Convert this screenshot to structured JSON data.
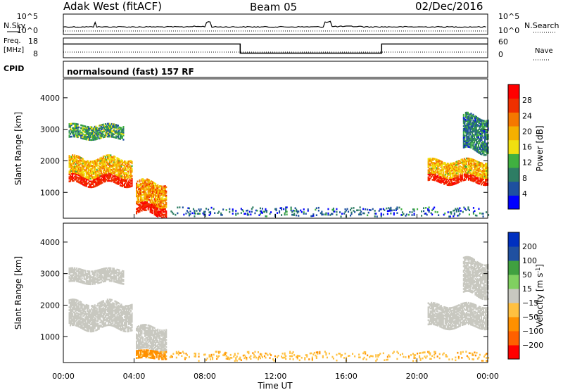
{
  "header": {
    "station": "Adak West (fitACF)",
    "beam": "Beam 05",
    "date": "02/Dec/2016"
  },
  "strips": {
    "nsky_label": "N.Sky",
    "nsearch_label": "N.Search",
    "noise_ticks": [
      "10^5",
      "10^0"
    ],
    "freq_label_1": "Freq.",
    "freq_label_2": "[MHz]",
    "freq_ticks": [
      "18",
      "8"
    ],
    "nave_label": "Nave",
    "nave_ticks": [
      "60",
      "0"
    ],
    "cpid_label": "CPID",
    "cpid_text": "normalsound (fast) 157 RF"
  },
  "colors": {
    "frame": "#000000",
    "power_scale": [
      "#0000ff",
      "#1e50a0",
      "#2e7d64",
      "#40b040",
      "#f0e010",
      "#f5b000",
      "#f57800",
      "#f03000",
      "#ff0000"
    ],
    "velocity_scale": [
      "#ff0000",
      "#ff6000",
      "#ff9000",
      "#ffc040",
      "#c8c8c0",
      "#80d060",
      "#40a040",
      "#2050a0",
      "#0030c0"
    ]
  },
  "chart_data": [
    {
      "type": "line",
      "name": "noise-strip",
      "x_range": [
        "00:00",
        "24:00"
      ],
      "series": [
        {
          "name": "N.Sky",
          "values": [
            3,
            3,
            3,
            3,
            3,
            3,
            3,
            4,
            3,
            3,
            3,
            3,
            3,
            3,
            3,
            4,
            4,
            3,
            3,
            3,
            3,
            3,
            3,
            3,
            3
          ]
        },
        {
          "name": "N.Search",
          "values": [
            1,
            1,
            1,
            1,
            1,
            1,
            1,
            1,
            1,
            1,
            1,
            1,
            1,
            1,
            1,
            1,
            1,
            1,
            1,
            1,
            1,
            1,
            1,
            1,
            1
          ]
        }
      ],
      "yticks": [
        "10^5",
        "10^0"
      ]
    },
    {
      "type": "line",
      "name": "frequency-strip",
      "x_hours": [
        0,
        10,
        10,
        18,
        18,
        24
      ],
      "freq_mhz": [
        15.5,
        15.5,
        10.5,
        10.5,
        15.5,
        15.5
      ],
      "nave_level": 10,
      "y_left_ticks": [
        "18",
        "8"
      ],
      "y_right_ticks": [
        "60",
        "0"
      ]
    },
    {
      "type": "heatmap",
      "name": "power-panel",
      "title": "",
      "xlabel": "",
      "ylabel": "Slant Range [km]",
      "xlim_hours": [
        0,
        24
      ],
      "ylim_km": [
        180,
        4600
      ],
      "yticks": [
        1000,
        2000,
        3000,
        4000
      ],
      "colorbar": {
        "label": "Power [dB]",
        "ticks": [
          4,
          8,
          12,
          16,
          20,
          24,
          28
        ],
        "range": [
          0,
          30
        ]
      },
      "regions": [
        {
          "t0": 0.3,
          "t1": 3.9,
          "r0": 1250,
          "r1": 2100,
          "value": 18,
          "core_value": 28
        },
        {
          "t0": 0.3,
          "t1": 3.4,
          "r0": 2700,
          "r1": 3150,
          "value": 10
        },
        {
          "t0": 4.1,
          "t1": 5.8,
          "r0": 300,
          "r1": 1300,
          "value": 20,
          "core_value": 28
        },
        {
          "t0": 20.6,
          "t1": 24.0,
          "r0": 1300,
          "r1": 2000,
          "value": 18,
          "core_value": 28
        },
        {
          "t0": 22.6,
          "t1": 24.0,
          "r0": 2300,
          "r1": 3400,
          "value": 8
        },
        {
          "t0": 6.0,
          "t1": 24.0,
          "r0": 250,
          "r1": 520,
          "value": 6
        }
      ]
    },
    {
      "type": "heatmap",
      "name": "velocity-panel",
      "title": "",
      "xlabel": "Time UT",
      "ylabel": "Slant Range [km]",
      "xlim_hours": [
        0,
        24
      ],
      "ylim_km": [
        180,
        4600
      ],
      "xticks": [
        "00:00",
        "04:00",
        "08:00",
        "12:00",
        "16:00",
        "20:00",
        "00:00"
      ],
      "yticks": [
        1000,
        2000,
        3000,
        4000
      ],
      "colorbar": {
        "label": "Velocity [m s-1]",
        "ticks": [
          200,
          100,
          50,
          15,
          -15,
          -50,
          -100,
          -200
        ]
      },
      "regions": [
        {
          "t0": 0.3,
          "t1": 3.9,
          "r0": 1250,
          "r1": 2100,
          "value": 0
        },
        {
          "t0": 0.3,
          "t1": 3.4,
          "r0": 2700,
          "r1": 3150,
          "value": 0
        },
        {
          "t0": 4.1,
          "t1": 5.8,
          "r0": 550,
          "r1": 1300,
          "value": 0
        },
        {
          "t0": 4.1,
          "t1": 5.8,
          "r0": 300,
          "r1": 550,
          "value": -60
        },
        {
          "t0": 20.6,
          "t1": 24.0,
          "r0": 1300,
          "r1": 2000,
          "value": 0
        },
        {
          "t0": 22.6,
          "t1": 24.0,
          "r0": 2300,
          "r1": 3400,
          "value": 0
        },
        {
          "t0": 6.0,
          "t1": 24.0,
          "r0": 250,
          "r1": 520,
          "value": -40
        }
      ]
    }
  ],
  "labels": {
    "power_ylabel": "Slant Range [km]",
    "velocity_ylabel": "Slant Range [km]",
    "power_cbar_label": "Power [dB]",
    "velocity_cbar_label": "Velocity [m s",
    "velocity_cbar_sup": "-1",
    "velocity_cbar_end": "]",
    "x_axis_label": "Time UT",
    "x_ticks": [
      "00:00",
      "04:00",
      "08:00",
      "12:00",
      "16:00",
      "20:00",
      "00:00"
    ],
    "y_ticks": [
      "4000",
      "3000",
      "2000",
      "1000"
    ],
    "power_cbar_ticks": [
      "28",
      "24",
      "20",
      "16",
      "12",
      "8",
      "4"
    ],
    "velocity_cbar_ticks": [
      "200",
      "100",
      "50",
      "15",
      "−15",
      "−50",
      "−100",
      "−200"
    ]
  }
}
